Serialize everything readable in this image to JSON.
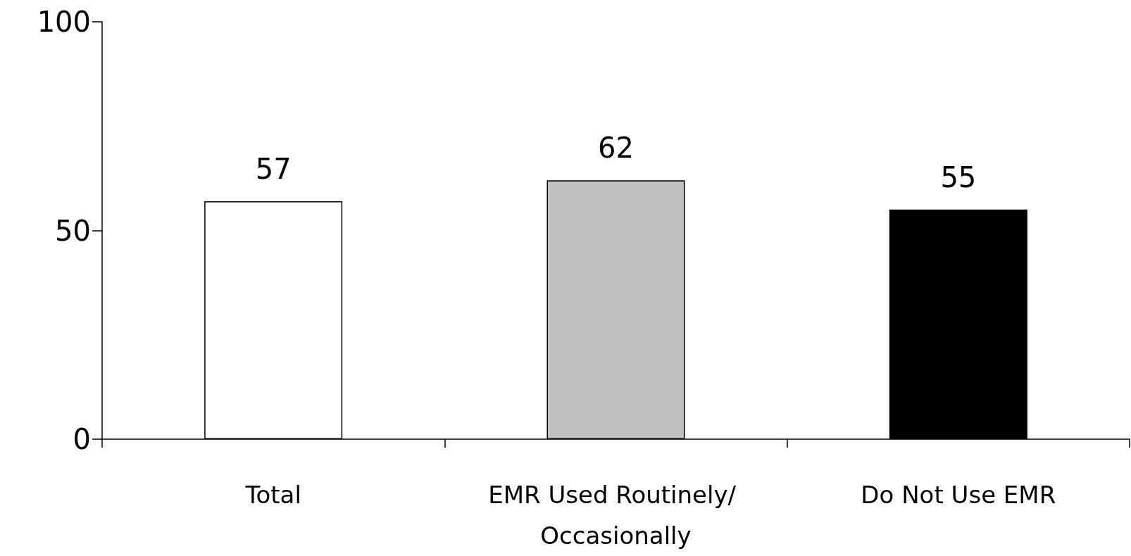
{
  "chart_data": {
    "type": "bar",
    "categories": [
      "Total",
      "EMR Used Routinely/ Occasionally",
      "Do Not Use EMR"
    ],
    "values": [
      57,
      62,
      55
    ],
    "colors": [
      "#ffffff",
      "#c0c0c0",
      "#000000"
    ],
    "ylim": [
      0,
      100
    ],
    "yticks": [
      0,
      50,
      100
    ],
    "data_labels": true
  }
}
